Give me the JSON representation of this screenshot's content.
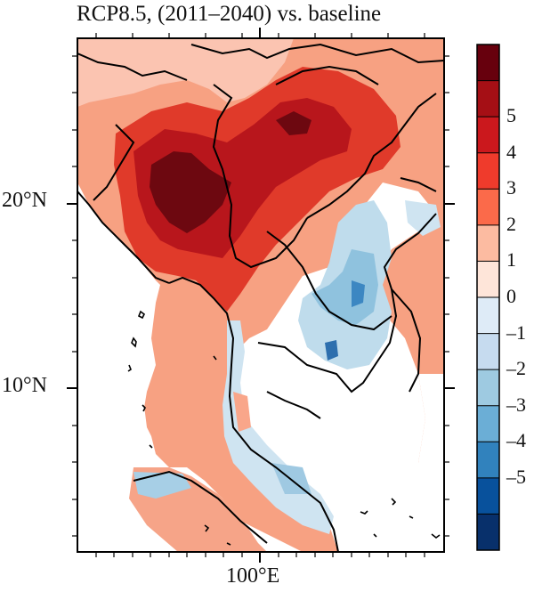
{
  "title": "RCP8.5, (2011–2040) vs. baseline",
  "map": {
    "lat_labels": [
      "20°N",
      "10°N"
    ],
    "lon_labels": [
      "100°E"
    ]
  },
  "colorbar": {
    "tick_labels": [
      "5",
      "4",
      "3",
      "2",
      "1",
      "0",
      "–1",
      "–2",
      "–3",
      "–4",
      "–5"
    ],
    "colors": [
      "#67000d",
      "#a50f15",
      "#cb181d",
      "#ef3b2c",
      "#fb6a4a",
      "#fcbba1",
      "#fee5d9",
      "#deebf7",
      "#c6dbef",
      "#9ecae1",
      "#6baed6",
      "#3182bd",
      "#08519c",
      "#08306b"
    ]
  },
  "ocean_color": "#ffffff",
  "border_color": "#000000"
}
